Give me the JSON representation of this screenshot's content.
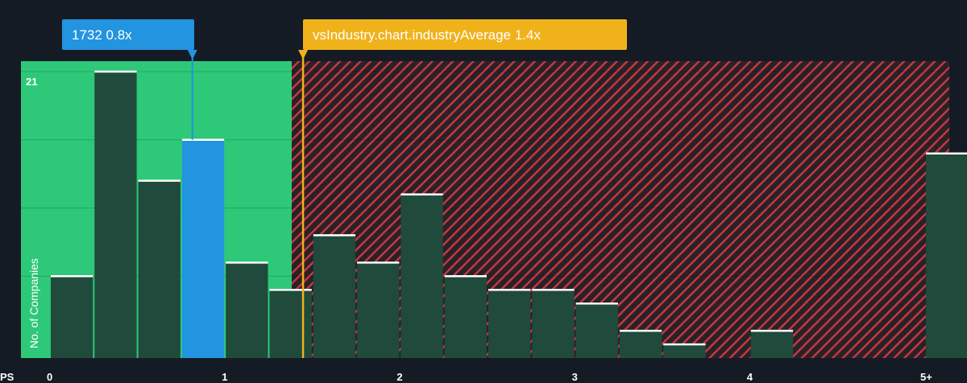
{
  "chart_data": {
    "type": "bar",
    "x_axis_label": "PS",
    "ylabel": "No. of Companies",
    "y_max_label": "21",
    "ylim": [
      0,
      21
    ],
    "x_ticks": [
      "0",
      "1",
      "2",
      "3",
      "4",
      "5+"
    ],
    "x_tick_values": [
      0,
      1,
      2,
      3,
      4,
      5.1
    ],
    "bin_width": 0.25,
    "bars": [
      {
        "x": 0.0,
        "value": 6
      },
      {
        "x": 0.25,
        "value": 21
      },
      {
        "x": 0.5,
        "value": 13
      },
      {
        "x": 0.75,
        "value": 16
      },
      {
        "x": 1.0,
        "value": 7
      },
      {
        "x": 1.25,
        "value": 5
      },
      {
        "x": 1.5,
        "value": 9
      },
      {
        "x": 1.75,
        "value": 7
      },
      {
        "x": 2.0,
        "value": 12
      },
      {
        "x": 2.25,
        "value": 6
      },
      {
        "x": 2.5,
        "value": 5
      },
      {
        "x": 2.75,
        "value": 5
      },
      {
        "x": 3.0,
        "value": 4
      },
      {
        "x": 3.25,
        "value": 2
      },
      {
        "x": 3.5,
        "value": 1
      },
      {
        "x": 3.75,
        "value": 0
      },
      {
        "x": 4.0,
        "value": 2
      },
      {
        "x": 4.25,
        "value": 0
      },
      {
        "x": 4.5,
        "value": 0
      },
      {
        "x": 4.75,
        "value": 0
      },
      {
        "x": 5.0,
        "value": 15
      }
    ],
    "company": {
      "label": "1732 0.8x",
      "value": 0.8,
      "color": "#2394df"
    },
    "industry": {
      "label": "vsIndustry.chart.industryAverage 1.4x",
      "value": 1.4,
      "color": "#f0b21b"
    },
    "colors": {
      "good_zone": "#2ec879",
      "bad_zone": "#d73e46",
      "bar": "#1f4a3c",
      "highlight_bar": "#2394df",
      "background": "#151b24"
    }
  }
}
